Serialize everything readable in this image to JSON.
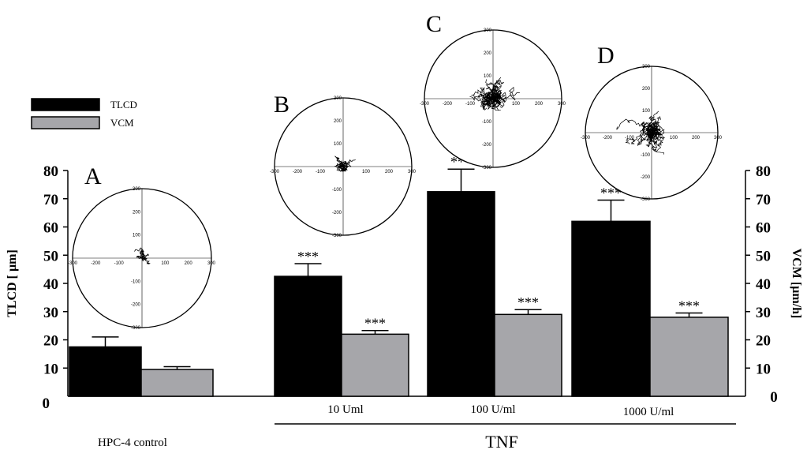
{
  "chart_data": {
    "type": "bar",
    "categories": [
      "HPC-4 control",
      "10 Uml",
      "100 U/ml",
      "1000 U/ml"
    ],
    "group_label": "TNF",
    "series": [
      {
        "name": "TLCD",
        "color": "#000000",
        "values": [
          17.5,
          42.5,
          72.5,
          62
        ],
        "errors": [
          3.5,
          4.5,
          8,
          7.5
        ],
        "significance": [
          "",
          "***",
          "***",
          "***"
        ]
      },
      {
        "name": "VCM",
        "color": "#a6a6aa",
        "values": [
          9.5,
          22,
          29,
          28
        ],
        "errors": [
          1,
          1.3,
          1.7,
          1.5
        ],
        "significance": [
          "",
          "***",
          "***",
          "***"
        ]
      }
    ],
    "ylabel_left": "TLCD [ µm]",
    "ylabel_right": "VCM [µm/h]",
    "ylim": [
      0,
      80
    ],
    "yticks": [
      "0",
      "10",
      "20",
      "30",
      "40",
      "50",
      "60",
      "70",
      "80"
    ],
    "legend_position": "top-left",
    "grid": false,
    "panels": [
      {
        "letter": "A",
        "tick_labels": [
          "300",
          "200",
          "100",
          "-100",
          "-200",
          "-300",
          "-300",
          "-200",
          "-100",
          "100",
          "200",
          "300"
        ]
      },
      {
        "letter": "B",
        "tick_labels": [
          "300",
          "200",
          "100",
          "-100",
          "-200",
          "-300",
          "-300",
          "-200",
          "-100",
          "100",
          "200",
          "300"
        ]
      },
      {
        "letter": "C",
        "tick_labels": [
          "300",
          "200",
          "100",
          "-100",
          "-200",
          "-300",
          "-300",
          "-200",
          "-100",
          "100",
          "200",
          "300"
        ]
      },
      {
        "letter": "D",
        "tick_labels": [
          "300",
          "200",
          "100",
          "-100",
          "-200",
          "-300",
          "-300",
          "-200",
          "-100",
          "100",
          "200",
          "300"
        ]
      }
    ]
  }
}
